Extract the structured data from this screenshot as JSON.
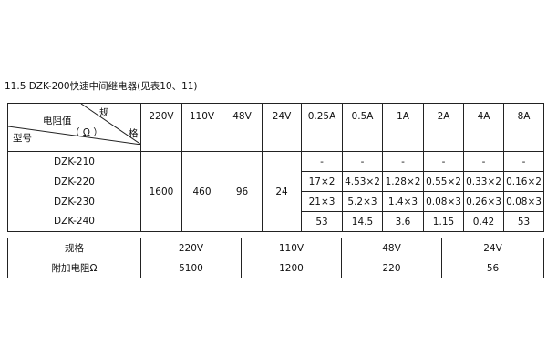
{
  "title": "11.5 DZK-200快速中间继电器(见表10、11)",
  "table1": {
    "corner": {
      "top_right": "规",
      "middle": "电阻值",
      "unit": "（ Ω ）",
      "right": "格",
      "bottom_left": "型号"
    },
    "voltage_headers": [
      "220V",
      "110V",
      "48V",
      "24V"
    ],
    "current_headers": [
      "0.25A",
      "0.5A",
      "1A",
      "2A",
      "4A",
      "8A"
    ],
    "models": [
      "DZK-210",
      "DZK-220",
      "DZK-230",
      "DZK-240"
    ],
    "voltage_values": [
      "1600",
      "460",
      "96",
      "24"
    ],
    "current_rows": [
      [
        "-",
        "-",
        "-",
        "-",
        "-",
        "-"
      ],
      [
        "17×2",
        "4.53×2",
        "1.28×2",
        "0.55×2",
        "0.33×2",
        "0.16×2"
      ],
      [
        "21×3",
        "5.2×3",
        "1.4×3",
        "0.08×3",
        "0.26×3",
        "0.08×3"
      ],
      [
        "53",
        "14.5",
        "3.6",
        "1.15",
        "0.42",
        "53"
      ]
    ]
  },
  "table2": {
    "row_labels": [
      "规格",
      "附加电阻Ω"
    ],
    "specs": [
      "220V",
      "110V",
      "48V",
      "24V"
    ],
    "resistances": [
      "5100",
      "1200",
      "220",
      "56"
    ]
  }
}
